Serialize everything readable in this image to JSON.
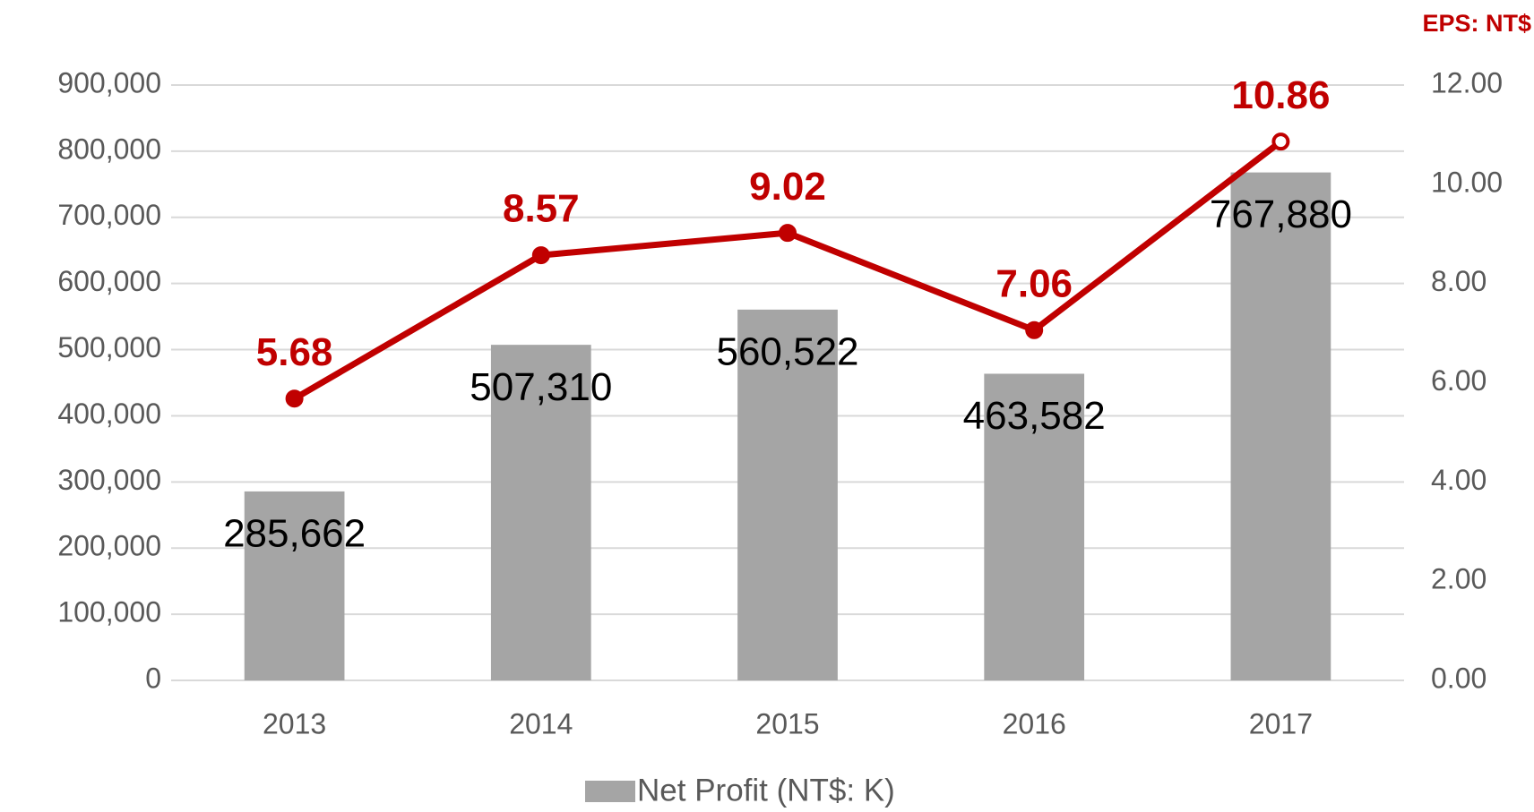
{
  "chart_data": {
    "type": "bar",
    "categories": [
      "2013",
      "2014",
      "2015",
      "2016",
      "2017"
    ],
    "series": [
      {
        "name": "Net Profit (NT$: K)",
        "type": "bar",
        "color": "#a5a5a5",
        "values": [
          285662,
          507310,
          560522,
          463582,
          767880
        ],
        "value_labels": [
          "285,662",
          "507,310",
          "560,522",
          "463,582",
          "767,880"
        ]
      },
      {
        "type": "line",
        "axis": "y2",
        "color": "#c00000",
        "values": [
          5.68,
          8.57,
          9.02,
          7.06,
          10.86
        ]
      }
    ],
    "y2label": "EPS: NT$",
    "ylim": [
      0,
      900000
    ],
    "yticks": [
      0,
      {
        "value": 100000,
        "label": "100,000"
      },
      {
        "value": 200000,
        "label": "200,000"
      },
      {
        "value": 300000,
        "label": "300,000"
      },
      {
        "value": 400000,
        "label": "400,000"
      },
      {
        "value": 500000,
        "label": "500,000"
      },
      {
        "value": 600000,
        "label": "600,000"
      },
      {
        "value": 700000,
        "label": "700,000"
      },
      {
        "value": 800000,
        "label": "800,000"
      },
      {
        "value": 900000,
        "label": "900,000"
      }
    ],
    "y2lim": [
      0,
      12
    ],
    "y2ticks": [
      {
        "value": 0,
        "label": "0.00"
      },
      {
        "value": 2,
        "label": "2.00"
      },
      {
        "value": 4,
        "label": "4.00"
      },
      {
        "value": 6,
        "label": "6.00"
      },
      {
        "value": 8,
        "label": "8.00"
      },
      {
        "value": 10,
        "label": "10.00"
      },
      {
        "value": 12,
        "label": "12.00"
      }
    ],
    "grid": true,
    "legend": "bottom"
  }
}
